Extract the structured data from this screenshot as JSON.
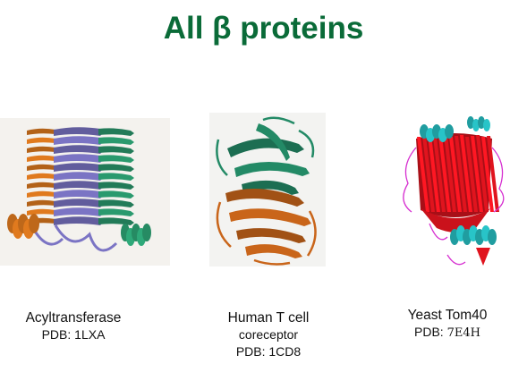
{
  "slide": {
    "title": "All β proteins",
    "title_color": "#0a6b38"
  },
  "panels": [
    {
      "name_line1": "Acyltransferase",
      "pdb_label": "PDB:",
      "pdb_code": "1LXA",
      "colors": [
        "#e07a1e",
        "#7b74c4",
        "#2a9a6e"
      ]
    },
    {
      "name_line1": "Human T cell",
      "name_line2": "coreceptor",
      "pdb_label": "PDB:",
      "pdb_code": "1CD8",
      "colors": [
        "#238a66",
        "#c9651a"
      ]
    },
    {
      "name_line1": "Yeast Tom40",
      "pdb_label": "PDB:",
      "pdb_code": "7E4H",
      "colors": [
        "#e0141e",
        "#28c4c8",
        "#d62fd0"
      ]
    }
  ]
}
